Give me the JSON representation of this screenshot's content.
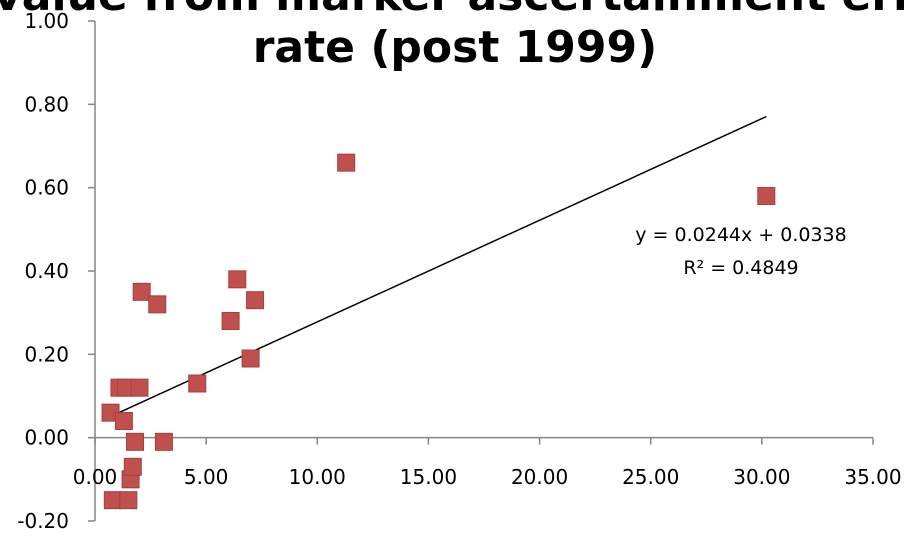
{
  "chart_data": {
    "type": "scatter",
    "title_lines": [
      "p-value from marker ascertainment error",
      "rate (post 1999)"
    ],
    "xlabel": "",
    "ylabel": "",
    "xlim": [
      0,
      35
    ],
    "ylim": [
      -0.2,
      1.0
    ],
    "x_ticks": [
      "0.00",
      "5.00",
      "10.00",
      "15.00",
      "20.00",
      "25.00",
      "30.00",
      "35.00"
    ],
    "y_ticks": [
      "-0.20",
      "0.00",
      "0.20",
      "0.40",
      "0.60",
      "0.80",
      "1.00"
    ],
    "grid": false,
    "marker_color": "#C0504D",
    "trend_color": "#000000",
    "series": [
      {
        "points": [
          [
            0.7,
            0.06
          ],
          [
            0.8,
            -0.15
          ],
          [
            1.1,
            0.12
          ],
          [
            1.3,
            0.04
          ],
          [
            1.4,
            0.12
          ],
          [
            1.5,
            -0.15
          ],
          [
            1.6,
            -0.1
          ],
          [
            1.7,
            -0.07
          ],
          [
            1.8,
            -0.01
          ],
          [
            2.0,
            0.12
          ],
          [
            2.1,
            0.35
          ],
          [
            2.8,
            0.32
          ],
          [
            3.1,
            -0.01
          ],
          [
            4.6,
            0.13
          ],
          [
            6.1,
            0.28
          ],
          [
            6.4,
            0.38
          ],
          [
            7.0,
            0.19
          ],
          [
            7.2,
            0.33
          ],
          [
            11.3,
            0.66
          ],
          [
            30.2,
            0.58
          ]
        ]
      }
    ],
    "trendline": {
      "slope": 0.0244,
      "intercept": 0.0338,
      "x_range": [
        0.7,
        30.2
      ],
      "equation_label": "y = 0.0244x + 0.0338",
      "r2_label": "R² = 0.4849"
    }
  }
}
